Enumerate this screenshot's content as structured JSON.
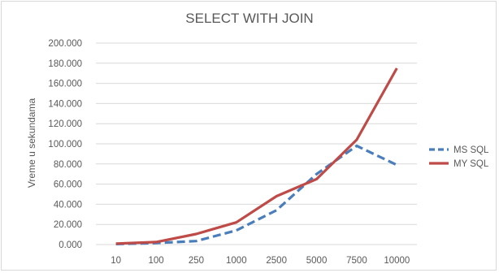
{
  "chart_data": {
    "type": "line",
    "title": "SELECT WITH JOIN",
    "xlabel": "",
    "ylabel": "Vreme u sekundama",
    "categories": [
      "10",
      "100",
      "250",
      "1000",
      "2500",
      "5000",
      "7500",
      "10000"
    ],
    "y_ticks": [
      "0.000",
      "20.000",
      "40.000",
      "60.000",
      "80.000",
      "100.000",
      "120.000",
      "140.000",
      "160.000",
      "180.000",
      "200.000"
    ],
    "ylim": [
      0,
      200
    ],
    "grid": true,
    "legend_position": "right",
    "series": [
      {
        "name": "MS SQL",
        "color": "#4a7ebb",
        "style": "dashed",
        "values": [
          0.5,
          1.5,
          3.5,
          14,
          34,
          70,
          98,
          79
        ]
      },
      {
        "name": "MY SQL",
        "color": "#be4b48",
        "style": "solid",
        "values": [
          1,
          2.5,
          10.5,
          22,
          48,
          65,
          104,
          175
        ]
      }
    ]
  }
}
